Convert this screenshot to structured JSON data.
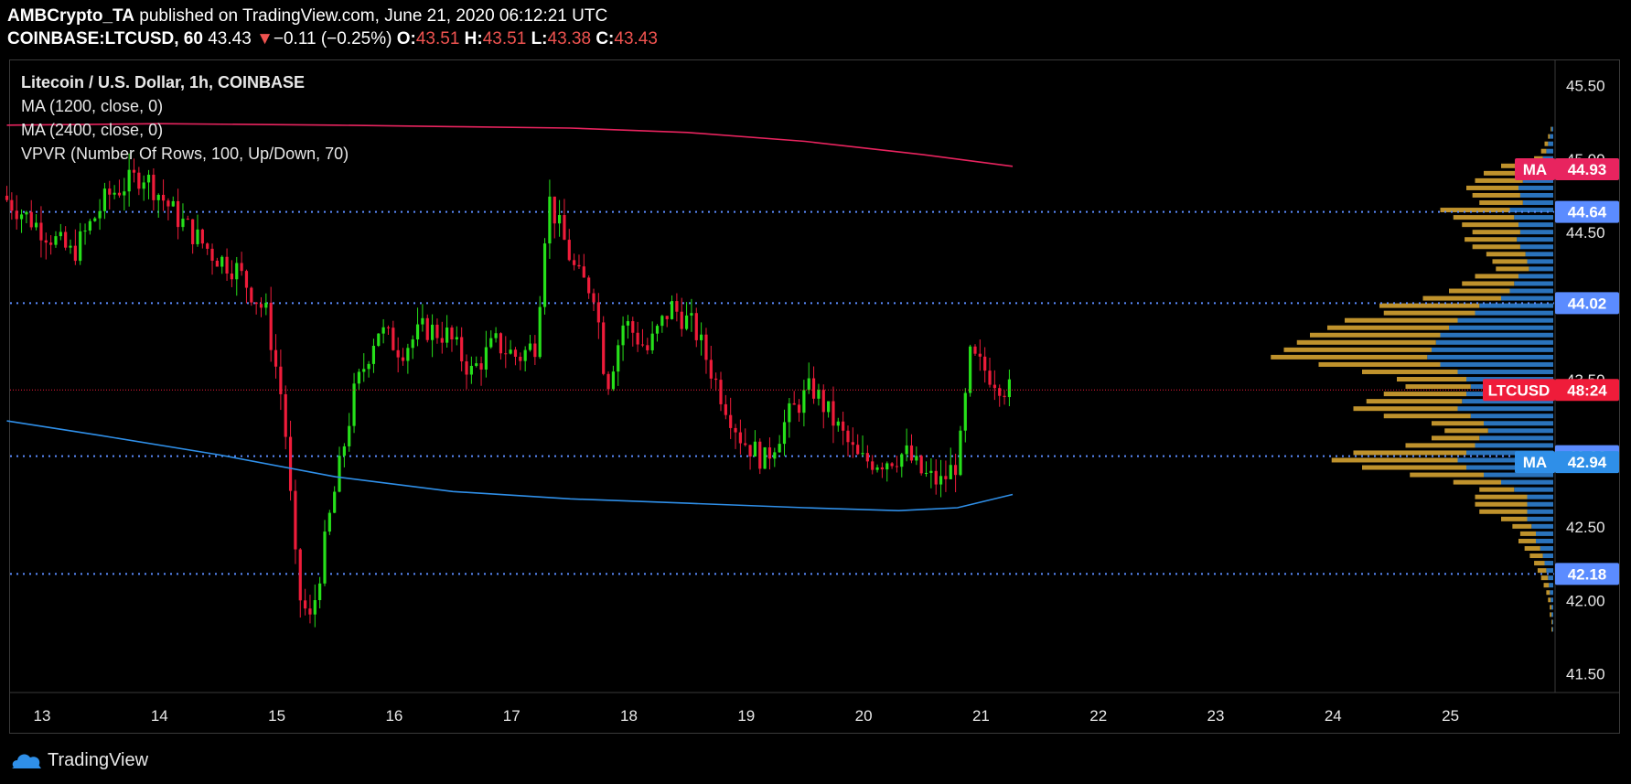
{
  "header": {
    "author": "AMBCrypto_TA",
    "published_text": " published on TradingView.com, June 21, 2020 06:12:21 UTC",
    "symbol": "COINBASE:LTCUSD, 60",
    "last": "43.43",
    "change_arrow": "▼",
    "change": "−0.11 (−0.25%)",
    "o_label": "O:",
    "o_value": "43.51",
    "h_label": "H:",
    "h_value": "43.51",
    "l_label": "L:",
    "l_value": "43.38",
    "c_label": "C:",
    "c_value": "43.43"
  },
  "legend": {
    "title": "Litecoin / U.S. Dollar, 1h, COINBASE",
    "ma1": "MA (1200, close, 0)",
    "ma2": "MA (2400, close, 0)",
    "vpvr": "VPVR (Number Of Rows, 100, Up/Down, 70)"
  },
  "footer": {
    "brand": "TradingView"
  },
  "colors": {
    "up": "#26e01a",
    "down": "#ef1c3a",
    "ma_pink": "#e8245f",
    "ma_blue": "#2f8fe8",
    "level": "#5b8cff",
    "vp_up": "#2f7fd0",
    "vp_down": "#c99a2e",
    "price_line": "#ef1c3a"
  },
  "chart_data": {
    "type": "candlestick",
    "title": "Litecoin / U.S. Dollar, 1h, COINBASE",
    "ylim": [
      41.38,
      45.67
    ],
    "y_ticks": [
      "45.50",
      "45.00",
      "44.50",
      "43.50",
      "42.50",
      "42.00",
      "41.50"
    ],
    "x_ticks": [
      "13",
      "14",
      "15",
      "16",
      "17",
      "18",
      "19",
      "20",
      "21",
      "22",
      "23",
      "24",
      "25"
    ],
    "horizontal_levels": [
      {
        "label": "44.64",
        "value": 44.64
      },
      {
        "label": "44.02",
        "value": 44.02
      },
      {
        "label": "42.98",
        "value": 42.98
      },
      {
        "label": "42.18",
        "value": 42.18
      }
    ],
    "price_marker": {
      "name": "LTCUSD",
      "value": 43.43,
      "label": "48:24"
    },
    "ma_markers": [
      {
        "name": "MA",
        "value": 44.93,
        "label": "44.93",
        "color": "pink"
      },
      {
        "name": "MA",
        "value": 42.94,
        "label": "42.94",
        "color": "blue"
      }
    ],
    "ma1200_points": [
      [
        12.7,
        43.22
      ],
      [
        13.5,
        43.12
      ],
      [
        14.5,
        42.99
      ],
      [
        15.5,
        42.84
      ],
      [
        16.5,
        42.74
      ],
      [
        17.5,
        42.69
      ],
      [
        18.5,
        42.66
      ],
      [
        19.5,
        42.63
      ],
      [
        20.3,
        42.61
      ],
      [
        20.8,
        42.63
      ],
      [
        21.27,
        42.72
      ]
    ],
    "ma2400_points": [
      [
        12.7,
        45.23
      ],
      [
        14,
        45.24
      ],
      [
        15.5,
        45.23
      ],
      [
        16.5,
        45.22
      ],
      [
        17.5,
        45.21
      ],
      [
        18.5,
        45.18
      ],
      [
        19.5,
        45.12
      ],
      [
        20.5,
        45.03
      ],
      [
        21.27,
        44.95
      ]
    ],
    "price_path": [
      [
        12.7,
        44.75
      ],
      [
        13.0,
        44.55
      ],
      [
        13.3,
        44.35
      ],
      [
        13.6,
        44.75
      ],
      [
        13.9,
        44.9
      ],
      [
        14.2,
        44.6
      ],
      [
        14.5,
        44.35
      ],
      [
        14.7,
        44.25
      ],
      [
        14.95,
        43.95
      ],
      [
        15.1,
        43.3
      ],
      [
        15.22,
        42.05
      ],
      [
        15.33,
        41.85
      ],
      [
        15.5,
        42.6
      ],
      [
        15.7,
        43.4
      ],
      [
        15.9,
        43.85
      ],
      [
        16.1,
        43.7
      ],
      [
        16.3,
        43.85
      ],
      [
        16.5,
        43.8
      ],
      [
        16.7,
        43.55
      ],
      [
        16.9,
        43.75
      ],
      [
        17.1,
        43.65
      ],
      [
        17.25,
        43.75
      ],
      [
        17.35,
        44.75
      ],
      [
        17.6,
        44.2
      ],
      [
        17.75,
        44.1
      ],
      [
        17.85,
        43.45
      ],
      [
        18.0,
        43.9
      ],
      [
        18.2,
        43.7
      ],
      [
        18.4,
        44.0
      ],
      [
        18.6,
        43.85
      ],
      [
        18.8,
        43.45
      ],
      [
        19.0,
        43.1
      ],
      [
        19.2,
        42.95
      ],
      [
        19.4,
        43.25
      ],
      [
        19.6,
        43.45
      ],
      [
        19.8,
        43.2
      ],
      [
        20.0,
        42.95
      ],
      [
        20.2,
        42.95
      ],
      [
        20.4,
        43.0
      ],
      [
        20.55,
        42.85
      ],
      [
        20.7,
        42.8
      ],
      [
        20.85,
        42.95
      ],
      [
        20.95,
        43.65
      ],
      [
        21.1,
        43.55
      ],
      [
        21.27,
        43.43
      ]
    ],
    "volume_profile": {
      "rows": [
        {
          "price": 45.2,
          "up": 2,
          "down": 1
        },
        {
          "price": 45.15,
          "up": 4,
          "down": 2
        },
        {
          "price": 45.1,
          "up": 6,
          "down": 4
        },
        {
          "price": 45.05,
          "up": 8,
          "down": 6
        },
        {
          "price": 45.0,
          "up": 12,
          "down": 10
        },
        {
          "price": 44.95,
          "up": 20,
          "down": 40
        },
        {
          "price": 44.9,
          "up": 30,
          "down": 50
        },
        {
          "price": 44.85,
          "up": 35,
          "down": 55
        },
        {
          "price": 44.8,
          "up": 40,
          "down": 60
        },
        {
          "price": 44.75,
          "up": 38,
          "down": 55
        },
        {
          "price": 44.7,
          "up": 35,
          "down": 50
        },
        {
          "price": 44.65,
          "up": 50,
          "down": 80
        },
        {
          "price": 44.6,
          "up": 45,
          "down": 70
        },
        {
          "price": 44.55,
          "up": 40,
          "down": 65
        },
        {
          "price": 44.5,
          "up": 38,
          "down": 55
        },
        {
          "price": 44.45,
          "up": 42,
          "down": 60
        },
        {
          "price": 44.4,
          "up": 38,
          "down": 55
        },
        {
          "price": 44.35,
          "up": 32,
          "down": 45
        },
        {
          "price": 44.3,
          "up": 30,
          "down": 40
        },
        {
          "price": 44.25,
          "up": 28,
          "down": 38
        },
        {
          "price": 44.2,
          "up": 40,
          "down": 50
        },
        {
          "price": 44.15,
          "up": 45,
          "down": 60
        },
        {
          "price": 44.1,
          "up": 50,
          "down": 70
        },
        {
          "price": 44.05,
          "up": 60,
          "down": 90
        },
        {
          "price": 44.0,
          "up": 85,
          "down": 115
        },
        {
          "price": 43.95,
          "up": 90,
          "down": 105
        },
        {
          "price": 43.9,
          "up": 110,
          "down": 130
        },
        {
          "price": 43.85,
          "up": 120,
          "down": 140
        },
        {
          "price": 43.8,
          "up": 130,
          "down": 150
        },
        {
          "price": 43.75,
          "up": 135,
          "down": 160
        },
        {
          "price": 43.7,
          "up": 140,
          "down": 170
        },
        {
          "price": 43.65,
          "up": 145,
          "down": 180
        },
        {
          "price": 43.6,
          "up": 130,
          "down": 140
        },
        {
          "price": 43.55,
          "up": 110,
          "down": 110
        },
        {
          "price": 43.5,
          "up": 100,
          "down": 80
        },
        {
          "price": 43.45,
          "up": 95,
          "down": 75
        },
        {
          "price": 43.4,
          "up": 100,
          "down": 95
        },
        {
          "price": 43.35,
          "up": 105,
          "down": 110
        },
        {
          "price": 43.3,
          "up": 110,
          "down": 120
        },
        {
          "price": 43.25,
          "up": 95,
          "down": 100
        },
        {
          "price": 43.2,
          "up": 80,
          "down": 60
        },
        {
          "price": 43.15,
          "up": 75,
          "down": 50
        },
        {
          "price": 43.1,
          "up": 85,
          "down": 55
        },
        {
          "price": 43.05,
          "up": 90,
          "down": 80
        },
        {
          "price": 43.0,
          "up": 100,
          "down": 130
        },
        {
          "price": 42.95,
          "up": 110,
          "down": 145
        },
        {
          "price": 42.9,
          "up": 100,
          "down": 120
        },
        {
          "price": 42.85,
          "up": 80,
          "down": 85
        },
        {
          "price": 42.8,
          "up": 60,
          "down": 55
        },
        {
          "price": 42.75,
          "up": 45,
          "down": 40
        },
        {
          "price": 42.7,
          "up": 30,
          "down": 60
        },
        {
          "price": 42.65,
          "up": 30,
          "down": 60
        },
        {
          "price": 42.6,
          "up": 30,
          "down": 55
        },
        {
          "price": 42.55,
          "up": 30,
          "down": 30
        },
        {
          "price": 42.5,
          "up": 25,
          "down": 22
        },
        {
          "price": 42.45,
          "up": 20,
          "down": 18
        },
        {
          "price": 42.4,
          "up": 20,
          "down": 20
        },
        {
          "price": 42.35,
          "up": 15,
          "down": 18
        },
        {
          "price": 42.3,
          "up": 12,
          "down": 15
        },
        {
          "price": 42.25,
          "up": 10,
          "down": 12
        },
        {
          "price": 42.2,
          "up": 8,
          "down": 10
        },
        {
          "price": 42.15,
          "up": 6,
          "down": 8
        },
        {
          "price": 42.1,
          "up": 5,
          "down": 6
        },
        {
          "price": 42.05,
          "up": 4,
          "down": 4
        },
        {
          "price": 42.0,
          "up": 3,
          "down": 3
        },
        {
          "price": 41.95,
          "up": 2,
          "down": 2
        },
        {
          "price": 41.9,
          "up": 2,
          "down": 2
        },
        {
          "price": 41.85,
          "up": 1,
          "down": 1
        },
        {
          "price": 41.8,
          "up": 1,
          "down": 1
        }
      ]
    }
  }
}
